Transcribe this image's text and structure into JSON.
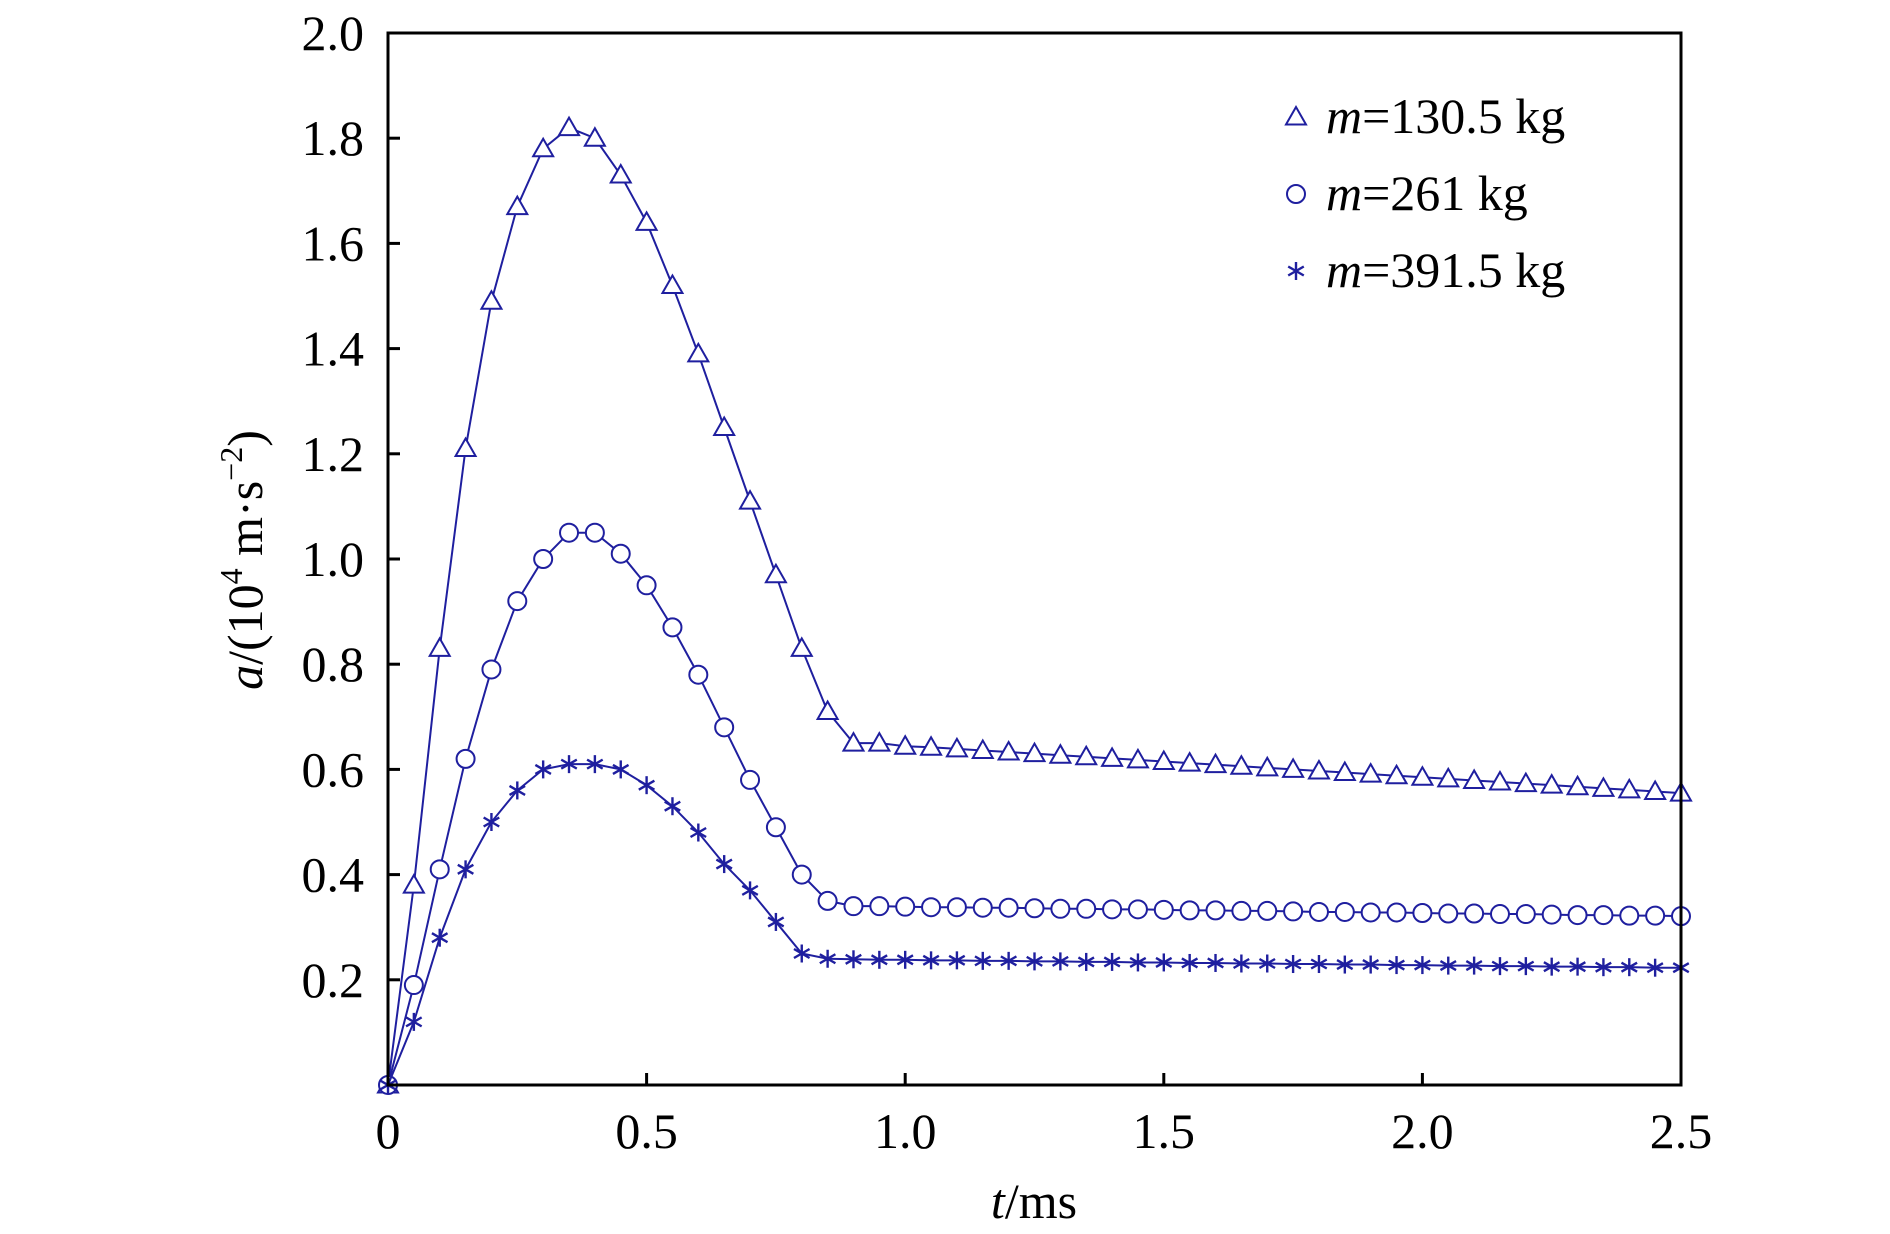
{
  "chart_data": {
    "type": "line",
    "xlabel": {
      "var": "t",
      "unit": "/ms"
    },
    "ylabel": {
      "var": "a",
      "pre": "/(10",
      "exp": "4",
      "mid": " m·s",
      "exp2": "−2",
      "post": ")"
    },
    "xlim": [
      0,
      2.5
    ],
    "ylim": [
      0,
      2.0
    ],
    "xticks": [
      0,
      0.5,
      1.0,
      1.5,
      2.0,
      2.5
    ],
    "xtick_labels": [
      "0",
      "0.5",
      "1.0",
      "1.5",
      "2.0",
      "2.5"
    ],
    "yticks": [
      0.2,
      0.4,
      0.6,
      0.8,
      1.0,
      1.2,
      1.4,
      1.6,
      1.8,
      2.0
    ],
    "ytick_labels": [
      "0.2",
      "0.4",
      "0.6",
      "0.8",
      "1.0",
      "1.2",
      "1.4",
      "1.6",
      "1.8",
      "2.0"
    ],
    "grid": false,
    "legend_position": "top-right",
    "color": "#1f1f9f",
    "series": [
      {
        "legend_var": "m",
        "legend_rest": "=130.5 kg",
        "marker": "triangle",
        "x": [
          0,
          0.05,
          0.1,
          0.15,
          0.2,
          0.25,
          0.3,
          0.35,
          0.4,
          0.45,
          0.5,
          0.55,
          0.6,
          0.65,
          0.7,
          0.75,
          0.8,
          0.85,
          0.9,
          0.95,
          1.0,
          1.05,
          1.1,
          1.15,
          1.2,
          1.25,
          1.3,
          1.35,
          1.4,
          1.45,
          1.5,
          1.55,
          1.6,
          1.65,
          1.7,
          1.75,
          1.8,
          1.85,
          1.9,
          1.95,
          2.0,
          2.05,
          2.1,
          2.15,
          2.2,
          2.25,
          2.3,
          2.35,
          2.4,
          2.45,
          2.5
        ],
        "y": [
          0,
          0.38,
          0.83,
          1.21,
          1.49,
          1.67,
          1.78,
          1.82,
          1.8,
          1.73,
          1.64,
          1.52,
          1.39,
          1.25,
          1.11,
          0.97,
          0.83,
          0.71,
          0.65,
          0.65,
          0.644,
          0.642,
          0.639,
          0.636,
          0.633,
          0.63,
          0.627,
          0.624,
          0.621,
          0.618,
          0.615,
          0.612,
          0.609,
          0.606,
          0.603,
          0.6,
          0.597,
          0.594,
          0.591,
          0.588,
          0.585,
          0.582,
          0.579,
          0.576,
          0.573,
          0.57,
          0.567,
          0.564,
          0.561,
          0.558,
          0.555
        ]
      },
      {
        "legend_var": "m",
        "legend_rest": "=261 kg",
        "marker": "circle",
        "x": [
          0,
          0.05,
          0.1,
          0.15,
          0.2,
          0.25,
          0.3,
          0.35,
          0.4,
          0.45,
          0.5,
          0.55,
          0.6,
          0.65,
          0.7,
          0.75,
          0.8,
          0.85,
          0.9,
          0.95,
          1.0,
          1.05,
          1.1,
          1.15,
          1.2,
          1.25,
          1.3,
          1.35,
          1.4,
          1.45,
          1.5,
          1.55,
          1.6,
          1.65,
          1.7,
          1.75,
          1.8,
          1.85,
          1.9,
          1.95,
          2.0,
          2.05,
          2.1,
          2.15,
          2.2,
          2.25,
          2.3,
          2.35,
          2.4,
          2.45,
          2.5
        ],
        "y": [
          0,
          0.19,
          0.41,
          0.62,
          0.79,
          0.92,
          1.0,
          1.05,
          1.05,
          1.01,
          0.95,
          0.87,
          0.78,
          0.68,
          0.58,
          0.49,
          0.4,
          0.35,
          0.34,
          0.34,
          0.339,
          0.338,
          0.338,
          0.337,
          0.337,
          0.336,
          0.335,
          0.335,
          0.334,
          0.334,
          0.333,
          0.332,
          0.332,
          0.331,
          0.331,
          0.33,
          0.329,
          0.329,
          0.328,
          0.328,
          0.327,
          0.326,
          0.326,
          0.325,
          0.325,
          0.324,
          0.323,
          0.323,
          0.322,
          0.322,
          0.321
        ]
      },
      {
        "legend_var": "m",
        "legend_rest": "=391.5 kg",
        "marker": "star",
        "x": [
          0,
          0.05,
          0.1,
          0.15,
          0.2,
          0.25,
          0.3,
          0.35,
          0.4,
          0.45,
          0.5,
          0.55,
          0.6,
          0.65,
          0.7,
          0.75,
          0.8,
          0.85,
          0.9,
          0.95,
          1.0,
          1.05,
          1.1,
          1.15,
          1.2,
          1.25,
          1.3,
          1.35,
          1.4,
          1.45,
          1.5,
          1.55,
          1.6,
          1.65,
          1.7,
          1.75,
          1.8,
          1.85,
          1.9,
          1.95,
          2.0,
          2.05,
          2.1,
          2.15,
          2.2,
          2.25,
          2.3,
          2.35,
          2.4,
          2.45,
          2.5
        ],
        "y": [
          0,
          0.12,
          0.28,
          0.41,
          0.5,
          0.56,
          0.6,
          0.61,
          0.61,
          0.6,
          0.57,
          0.53,
          0.48,
          0.42,
          0.37,
          0.31,
          0.25,
          0.24,
          0.239,
          0.238,
          0.238,
          0.237,
          0.237,
          0.236,
          0.236,
          0.235,
          0.235,
          0.234,
          0.234,
          0.233,
          0.233,
          0.232,
          0.232,
          0.231,
          0.231,
          0.23,
          0.23,
          0.229,
          0.229,
          0.228,
          0.228,
          0.227,
          0.227,
          0.226,
          0.226,
          0.225,
          0.225,
          0.224,
          0.224,
          0.223,
          0.223
        ]
      }
    ]
  }
}
